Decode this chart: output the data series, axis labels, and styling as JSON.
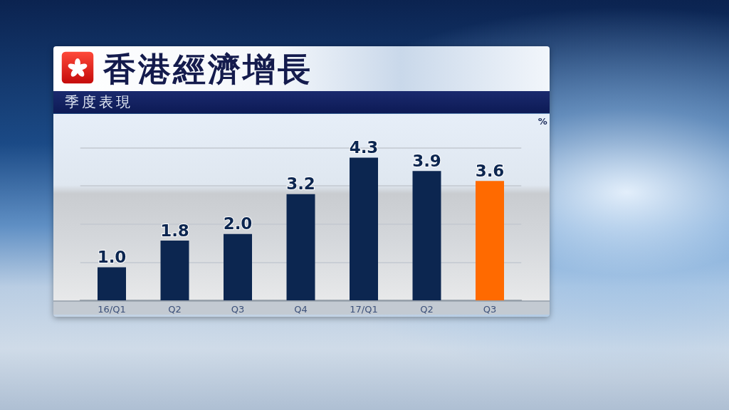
{
  "chart_data": {
    "type": "bar",
    "title": "香港經濟增長",
    "subtitle": "季度表現",
    "ylabel": "%",
    "categories": [
      "16/Q1",
      "Q2",
      "Q3",
      "Q4",
      "17/Q1",
      "Q2",
      "Q3"
    ],
    "values": [
      1.0,
      1.8,
      2.0,
      3.2,
      4.3,
      3.9,
      3.6
    ],
    "colors": [
      "#0c2650",
      "#0c2650",
      "#0c2650",
      "#0c2650",
      "#0c2650",
      "#0c2650",
      "#ff6a00"
    ],
    "value_labels": [
      "1.0",
      "1.8",
      "2.0",
      "3.2",
      "4.3",
      "3.9",
      "3.6"
    ],
    "ylim": [
      0,
      5.6
    ],
    "yticks": [
      {
        "value": 1.15,
        "label": null
      },
      {
        "value": 2.3,
        "label": null
      },
      {
        "value": 3.45,
        "label": null
      },
      {
        "value": 4.6,
        "label": null
      }
    ],
    "grid": "y",
    "tick_labels": "x"
  }
}
